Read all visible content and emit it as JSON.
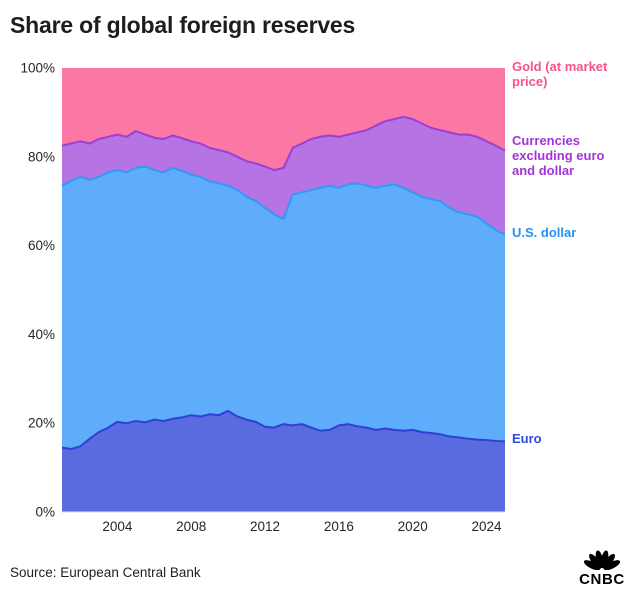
{
  "header": {
    "title": "Share of global foreign reserves"
  },
  "footer": {
    "source": "Source: European Central Bank",
    "logo_text": "CNBC"
  },
  "chart_data": {
    "type": "area",
    "stacked": true,
    "title": "Share of global foreign reserves",
    "xlabel": "",
    "ylabel": "",
    "xlim": [
      2001,
      2025
    ],
    "ylim": [
      0,
      100
    ],
    "grid": false,
    "legend_position": "right",
    "x": [
      2001,
      2001.5,
      2002,
      2002.5,
      2003,
      2003.5,
      2004,
      2004.5,
      2005,
      2005.5,
      2006,
      2006.5,
      2007,
      2007.5,
      2008,
      2008.5,
      2009,
      2009.5,
      2010,
      2010.5,
      2011,
      2011.5,
      2012,
      2012.5,
      2013,
      2013.5,
      2014,
      2014.5,
      2015,
      2015.5,
      2016,
      2016.5,
      2017,
      2017.5,
      2018,
      2018.5,
      2019,
      2019.5,
      2020,
      2020.5,
      2021,
      2021.5,
      2022,
      2022.5,
      2023,
      2023.5,
      2024,
      2024.5,
      2025
    ],
    "y_ticks": [
      {
        "label": "0%",
        "value": 0
      },
      {
        "label": "20%",
        "value": 20
      },
      {
        "label": "40%",
        "value": 40
      },
      {
        "label": "60%",
        "value": 60
      },
      {
        "label": "80%",
        "value": 80
      },
      {
        "label": "100%",
        "value": 100
      }
    ],
    "x_ticks": [
      {
        "label": "2004",
        "value": 2004
      },
      {
        "label": "2008",
        "value": 2008
      },
      {
        "label": "2012",
        "value": 2012
      },
      {
        "label": "2016",
        "value": 2016
      },
      {
        "label": "2020",
        "value": 2020
      },
      {
        "label": "2024",
        "value": 2024
      }
    ],
    "series": [
      {
        "id": "euro",
        "name": "Euro",
        "label": "Euro",
        "fill": "#5a6be0",
        "line": "#2e41d4",
        "label_color": "#2d4adf",
        "values": [
          14.5,
          14.2,
          14.8,
          16.5,
          18.0,
          19.0,
          20.3,
          20.0,
          20.5,
          20.2,
          20.8,
          20.5,
          21.0,
          21.3,
          21.8,
          21.5,
          22.0,
          21.8,
          22.8,
          21.5,
          20.8,
          20.3,
          19.2,
          19.0,
          19.8,
          19.5,
          19.8,
          19.0,
          18.3,
          18.5,
          19.5,
          19.8,
          19.3,
          19.0,
          18.5,
          18.8,
          18.5,
          18.3,
          18.5,
          18.0,
          17.8,
          17.5,
          17.0,
          16.8,
          16.5,
          16.3,
          16.2,
          16.0,
          15.9
        ]
      },
      {
        "id": "usd",
        "name": "U.S. dollar",
        "label": "U.S. dollar",
        "fill": "#5fadfa",
        "line": "#2d9cf4",
        "label_color": "#2b8ff2",
        "values": [
          59.0,
          60.3,
          60.7,
          58.3,
          57.5,
          57.5,
          56.7,
          56.5,
          57.0,
          57.6,
          56.2,
          56.0,
          56.5,
          55.5,
          54.2,
          54.0,
          52.5,
          52.2,
          50.7,
          51.0,
          50.2,
          49.7,
          49.3,
          48.0,
          46.2,
          52.0,
          52.2,
          53.5,
          54.7,
          55.0,
          53.5,
          54.0,
          54.7,
          54.5,
          54.5,
          54.7,
          55.3,
          54.7,
          53.5,
          53.0,
          52.7,
          52.5,
          51.5,
          50.7,
          50.5,
          50.2,
          48.8,
          47.5,
          46.6
        ]
      },
      {
        "id": "other",
        "name": "Currencies excluding euro and dollar",
        "label": "Currencies excluding euro and dollar",
        "fill": "#b673e4",
        "line": "#9b3fd6",
        "label_color": "#a434d9",
        "values": [
          9.0,
          8.5,
          8.0,
          8.2,
          8.5,
          8.0,
          8.0,
          8.0,
          8.3,
          7.2,
          7.3,
          7.5,
          7.3,
          7.4,
          7.5,
          7.5,
          7.5,
          7.5,
          7.5,
          7.5,
          8.0,
          8.5,
          9.3,
          10.0,
          11.5,
          10.5,
          11.0,
          11.5,
          11.5,
          11.3,
          11.5,
          11.2,
          11.5,
          12.5,
          14.0,
          14.5,
          14.7,
          16.0,
          16.5,
          16.5,
          16.0,
          16.0,
          17.0,
          17.5,
          18.0,
          18.0,
          18.5,
          19.0,
          18.9
        ]
      },
      {
        "id": "gold",
        "name": "Gold (at market price)",
        "label": "Gold (at market price)",
        "fill": "#fb78a4",
        "line": "#fb78a4",
        "label_color": "#f9518f",
        "values": [
          17.5,
          17.0,
          16.5,
          17.0,
          16.0,
          15.5,
          15.0,
          15.5,
          14.2,
          15.0,
          15.7,
          16.0,
          15.2,
          15.8,
          16.5,
          17.0,
          18.0,
          18.5,
          19.0,
          20.0,
          21.0,
          21.5,
          22.2,
          23.0,
          22.5,
          18.0,
          17.0,
          16.0,
          15.5,
          15.2,
          15.5,
          15.0,
          14.5,
          14.0,
          13.0,
          12.0,
          11.5,
          11.0,
          11.5,
          12.5,
          13.5,
          14.0,
          14.5,
          15.0,
          15.0,
          15.5,
          16.5,
          17.5,
          18.6
        ]
      }
    ]
  }
}
